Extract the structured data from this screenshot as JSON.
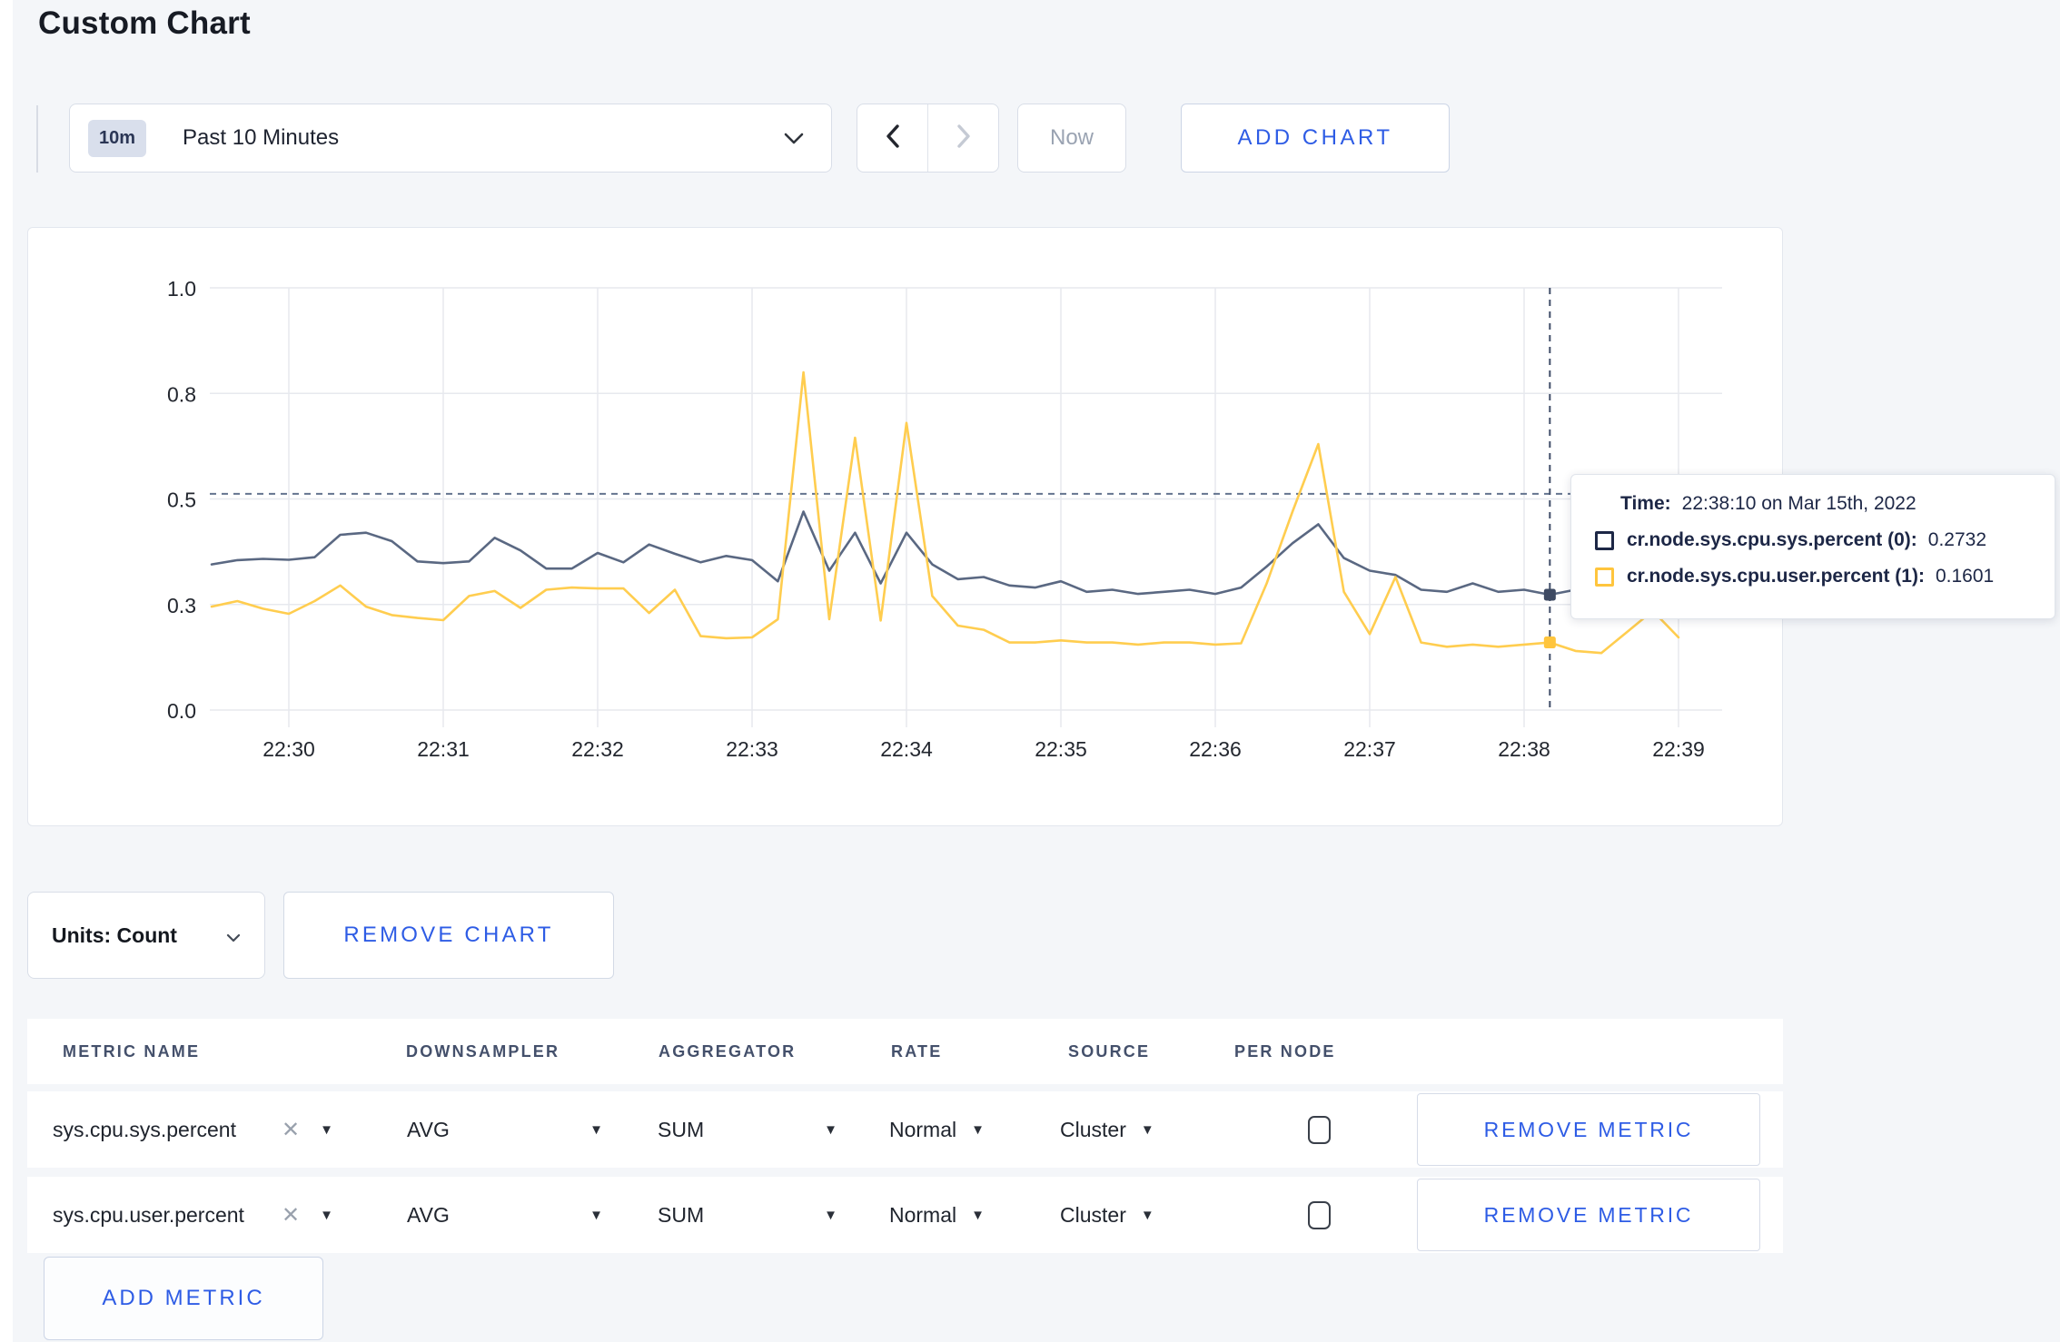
{
  "page": {
    "title": "Custom Chart"
  },
  "colors": {
    "accent_blue": "#2e5ce5",
    "navy": "#1d2746",
    "series_sys": "#5a6882",
    "series_user": "#ffcd4f"
  },
  "toolbar": {
    "range_badge": "10m",
    "range_label": "Past 10 Minutes",
    "now_label": "Now",
    "add_chart_label": "ADD CHART"
  },
  "chart_data": {
    "type": "line",
    "title": "",
    "xlabel": "",
    "ylabel": "",
    "ylim": [
      0,
      1
    ],
    "grid": true,
    "legend_position": "tooltip-only",
    "yticks": [
      {
        "v": 0.0,
        "label": "0.0"
      },
      {
        "v": 0.25,
        "label": "0.3"
      },
      {
        "v": 0.5,
        "label": "0.5"
      },
      {
        "v": 0.75,
        "label": "0.8"
      },
      {
        "v": 1.0,
        "label": "1.0"
      }
    ],
    "xticks": [
      {
        "v": 30,
        "label": "22:30"
      },
      {
        "v": 31,
        "label": "22:31"
      },
      {
        "v": 32,
        "label": "22:32"
      },
      {
        "v": 33,
        "label": "22:33"
      },
      {
        "v": 34,
        "label": "22:34"
      },
      {
        "v": 35,
        "label": "22:35"
      },
      {
        "v": 36,
        "label": "22:36"
      },
      {
        "v": 37,
        "label": "22:37"
      },
      {
        "v": 38,
        "label": "22:38"
      },
      {
        "v": 39,
        "label": "22:39"
      }
    ],
    "series": [
      {
        "name": "cr.node.sys.cpu.sys.percent",
        "color": "#5a6882",
        "points": [
          [
            29.5,
            0.345
          ],
          [
            29.667,
            0.355
          ],
          [
            29.833,
            0.358
          ],
          [
            30,
            0.356
          ],
          [
            30.167,
            0.362
          ],
          [
            30.333,
            0.415
          ],
          [
            30.5,
            0.42
          ],
          [
            30.667,
            0.4
          ],
          [
            30.833,
            0.352
          ],
          [
            31,
            0.348
          ],
          [
            31.167,
            0.352
          ],
          [
            31.333,
            0.408
          ],
          [
            31.5,
            0.378
          ],
          [
            31.667,
            0.335
          ],
          [
            31.833,
            0.335
          ],
          [
            32,
            0.372
          ],
          [
            32.167,
            0.35
          ],
          [
            32.333,
            0.392
          ],
          [
            32.5,
            0.37
          ],
          [
            32.667,
            0.35
          ],
          [
            32.833,
            0.365
          ],
          [
            33,
            0.355
          ],
          [
            33.167,
            0.305
          ],
          [
            33.333,
            0.47
          ],
          [
            33.5,
            0.33
          ],
          [
            33.667,
            0.42
          ],
          [
            33.833,
            0.3
          ],
          [
            34,
            0.42
          ],
          [
            34.167,
            0.345
          ],
          [
            34.333,
            0.31
          ],
          [
            34.5,
            0.315
          ],
          [
            34.667,
            0.295
          ],
          [
            34.833,
            0.29
          ],
          [
            35,
            0.305
          ],
          [
            35.167,
            0.28
          ],
          [
            35.333,
            0.285
          ],
          [
            35.5,
            0.275
          ],
          [
            35.667,
            0.28
          ],
          [
            35.833,
            0.285
          ],
          [
            36,
            0.275
          ],
          [
            36.167,
            0.29
          ],
          [
            36.333,
            0.34
          ],
          [
            36.5,
            0.395
          ],
          [
            36.667,
            0.44
          ],
          [
            36.833,
            0.36
          ],
          [
            37,
            0.33
          ],
          [
            37.167,
            0.32
          ],
          [
            37.333,
            0.285
          ],
          [
            37.5,
            0.28
          ],
          [
            37.667,
            0.3
          ],
          [
            37.833,
            0.28
          ],
          [
            38,
            0.285
          ],
          [
            38.167,
            0.2732
          ],
          [
            38.333,
            0.285
          ],
          [
            38.5,
            0.28
          ],
          [
            38.667,
            0.285
          ],
          [
            38.833,
            0.295
          ],
          [
            39,
            0.29
          ]
        ]
      },
      {
        "name": "cr.node.sys.cpu.user.percent",
        "color": "#ffcd4f",
        "points": [
          [
            29.5,
            0.245
          ],
          [
            29.667,
            0.258
          ],
          [
            29.833,
            0.24
          ],
          [
            30,
            0.228
          ],
          [
            30.167,
            0.258
          ],
          [
            30.333,
            0.295
          ],
          [
            30.5,
            0.245
          ],
          [
            30.667,
            0.225
          ],
          [
            30.833,
            0.218
          ],
          [
            31,
            0.213
          ],
          [
            31.167,
            0.27
          ],
          [
            31.333,
            0.282
          ],
          [
            31.5,
            0.242
          ],
          [
            31.667,
            0.285
          ],
          [
            31.833,
            0.29
          ],
          [
            32,
            0.288
          ],
          [
            32.167,
            0.288
          ],
          [
            32.333,
            0.23
          ],
          [
            32.5,
            0.285
          ],
          [
            32.667,
            0.175
          ],
          [
            32.833,
            0.17
          ],
          [
            33,
            0.172
          ],
          [
            33.167,
            0.215
          ],
          [
            33.333,
            0.8
          ],
          [
            33.5,
            0.215
          ],
          [
            33.667,
            0.645
          ],
          [
            33.833,
            0.212
          ],
          [
            34,
            0.68
          ],
          [
            34.167,
            0.27
          ],
          [
            34.333,
            0.2
          ],
          [
            34.5,
            0.19
          ],
          [
            34.667,
            0.16
          ],
          [
            34.833,
            0.16
          ],
          [
            35,
            0.165
          ],
          [
            35.167,
            0.16
          ],
          [
            35.333,
            0.16
          ],
          [
            35.5,
            0.155
          ],
          [
            35.667,
            0.16
          ],
          [
            35.833,
            0.16
          ],
          [
            36,
            0.155
          ],
          [
            36.167,
            0.158
          ],
          [
            36.333,
            0.3
          ],
          [
            36.5,
            0.47
          ],
          [
            36.667,
            0.63
          ],
          [
            36.833,
            0.28
          ],
          [
            37,
            0.18
          ],
          [
            37.167,
            0.315
          ],
          [
            37.333,
            0.16
          ],
          [
            37.5,
            0.15
          ],
          [
            37.667,
            0.155
          ],
          [
            37.833,
            0.15
          ],
          [
            38,
            0.155
          ],
          [
            38.167,
            0.1601
          ],
          [
            38.333,
            0.14
          ],
          [
            38.5,
            0.135
          ],
          [
            38.667,
            0.185
          ],
          [
            38.833,
            0.235
          ],
          [
            39,
            0.172
          ]
        ]
      }
    ],
    "hover": {
      "x": 38.1667,
      "y_line": 0.512,
      "points": [
        {
          "series": 0,
          "v": 0.2732
        },
        {
          "series": 1,
          "v": 0.1601
        }
      ]
    }
  },
  "tooltip": {
    "time_label": "Time:",
    "time_value": "22:38:10 on Mar 15th, 2022",
    "rows": [
      {
        "label": "cr.node.sys.cpu.sys.percent (0):",
        "value": "0.2732",
        "color": "#1d2746"
      },
      {
        "label": "cr.node.sys.cpu.user.percent (1):",
        "value": "0.1601",
        "color": "#ffc53d"
      }
    ]
  },
  "units_bar": {
    "units_label": "Units: Count",
    "remove_chart_label": "REMOVE CHART"
  },
  "metrics_table": {
    "columns": [
      "METRIC NAME",
      "DOWNSAMPLER",
      "AGGREGATOR",
      "RATE",
      "SOURCE",
      "PER NODE"
    ],
    "rows": [
      {
        "metric": "sys.cpu.sys.percent",
        "remove_icon": "✕",
        "downsampler": "AVG",
        "aggregator": "SUM",
        "rate": "Normal",
        "source": "Cluster",
        "per_node_checked": false,
        "remove_label": "REMOVE METRIC"
      },
      {
        "metric": "sys.cpu.user.percent",
        "remove_icon": "✕",
        "downsampler": "AVG",
        "aggregator": "SUM",
        "rate": "Normal",
        "source": "Cluster",
        "per_node_checked": false,
        "remove_label": "REMOVE METRIC"
      }
    ],
    "add_metric_label": "ADD METRIC",
    "caret_glyph": "▼"
  }
}
